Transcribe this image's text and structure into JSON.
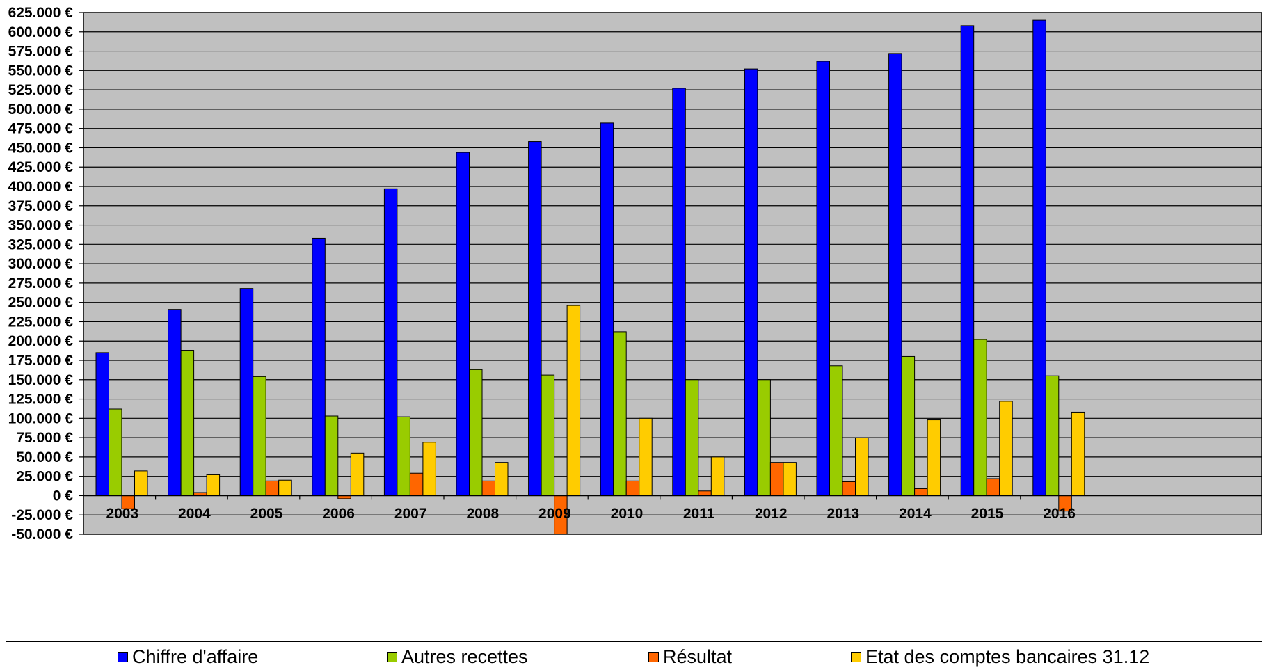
{
  "chart_data": {
    "type": "bar",
    "categories": [
      "2003",
      "2004",
      "2005",
      "2006",
      "2007",
      "2008",
      "2009",
      "2010",
      "2011",
      "2012",
      "2013",
      "2014",
      "2015",
      "2016"
    ],
    "series": [
      {
        "name": "Chiffre d'affaire",
        "color": "#0000ff",
        "values": [
          185000,
          241000,
          268000,
          333000,
          397000,
          444000,
          458000,
          482000,
          527000,
          552000,
          562000,
          572000,
          608000,
          615000
        ]
      },
      {
        "name": "Autres recettes",
        "color": "#99cc00",
        "values": [
          112000,
          188000,
          154000,
          103000,
          102000,
          163000,
          156000,
          212000,
          150000,
          150000,
          168000,
          180000,
          202000,
          155000
        ]
      },
      {
        "name": "Résultat",
        "color": "#ff6600",
        "values": [
          -17000,
          4000,
          19000,
          -4000,
          29000,
          19000,
          -50000,
          19000,
          6000,
          43000,
          18000,
          9000,
          22000,
          -20000
        ]
      },
      {
        "name": "Etat des comptes bancaires 31.12",
        "color": "#ffcc00",
        "values": [
          32000,
          27000,
          20000,
          55000,
          69000,
          43000,
          246000,
          100000,
          50000,
          43000,
          75000,
          98000,
          122000,
          108000
        ]
      }
    ],
    "ylim": [
      -50000,
      625000
    ],
    "ytick_step": 25000,
    "ytick_labels": [
      "-50.000 €",
      "-25.000 €",
      "0 €",
      "25.000 €",
      "50.000 €",
      "75.000 €",
      "100.000 €",
      "125.000 €",
      "150.000 €",
      "175.000 €",
      "200.000 €",
      "225.000 €",
      "250.000 €",
      "275.000 €",
      "300.000 €",
      "325.000 €",
      "350.000 €",
      "375.000 €",
      "400.000 €",
      "425.000 €",
      "450.000 €",
      "475.000 €",
      "500.000 €",
      "525.000 €",
      "550.000 €",
      "575.000 €",
      "600.000 €",
      "625.000 €"
    ],
    "grid": true,
    "plot_background": "#c0c0c0",
    "legend_position": "bottom"
  }
}
